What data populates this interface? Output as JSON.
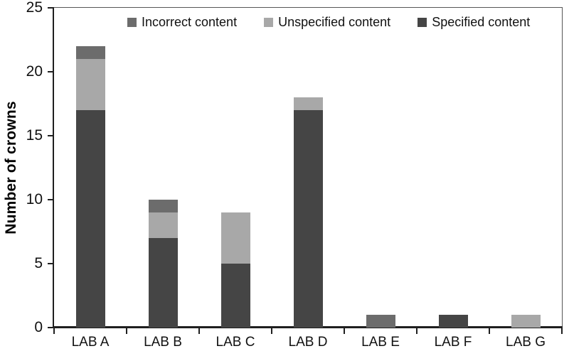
{
  "chart_data": {
    "type": "bar",
    "stacked": true,
    "title": "",
    "xlabel": "",
    "ylabel": "Number of crowns",
    "categories": [
      "LAB A",
      "LAB B",
      "LAB C",
      "LAB D",
      "LAB E",
      "LAB F",
      "LAB G"
    ],
    "series": [
      {
        "name": "Specified content",
        "color": "#454545",
        "values": [
          17,
          7,
          5,
          17,
          0,
          1,
          0
        ]
      },
      {
        "name": "Unspecified content",
        "color": "#a8a8a8",
        "values": [
          4,
          2,
          4,
          1,
          0,
          0,
          1
        ]
      },
      {
        "name": "Incorrect content",
        "color": "#6c6c6c",
        "values": [
          1,
          1,
          0,
          0,
          1,
          0,
          0
        ]
      }
    ],
    "totals": [
      22,
      10,
      9,
      18,
      1,
      1,
      1
    ],
    "ylim": [
      0,
      25
    ],
    "yticks": [
      0,
      5,
      10,
      15,
      20,
      25
    ],
    "grid": false,
    "legend": {
      "position": "top",
      "order": [
        "Incorrect content",
        "Unspecified content",
        "Specified content"
      ]
    },
    "colors": {
      "axis": "#1f1f1f",
      "frame": "#565656",
      "text": "#111111"
    }
  }
}
